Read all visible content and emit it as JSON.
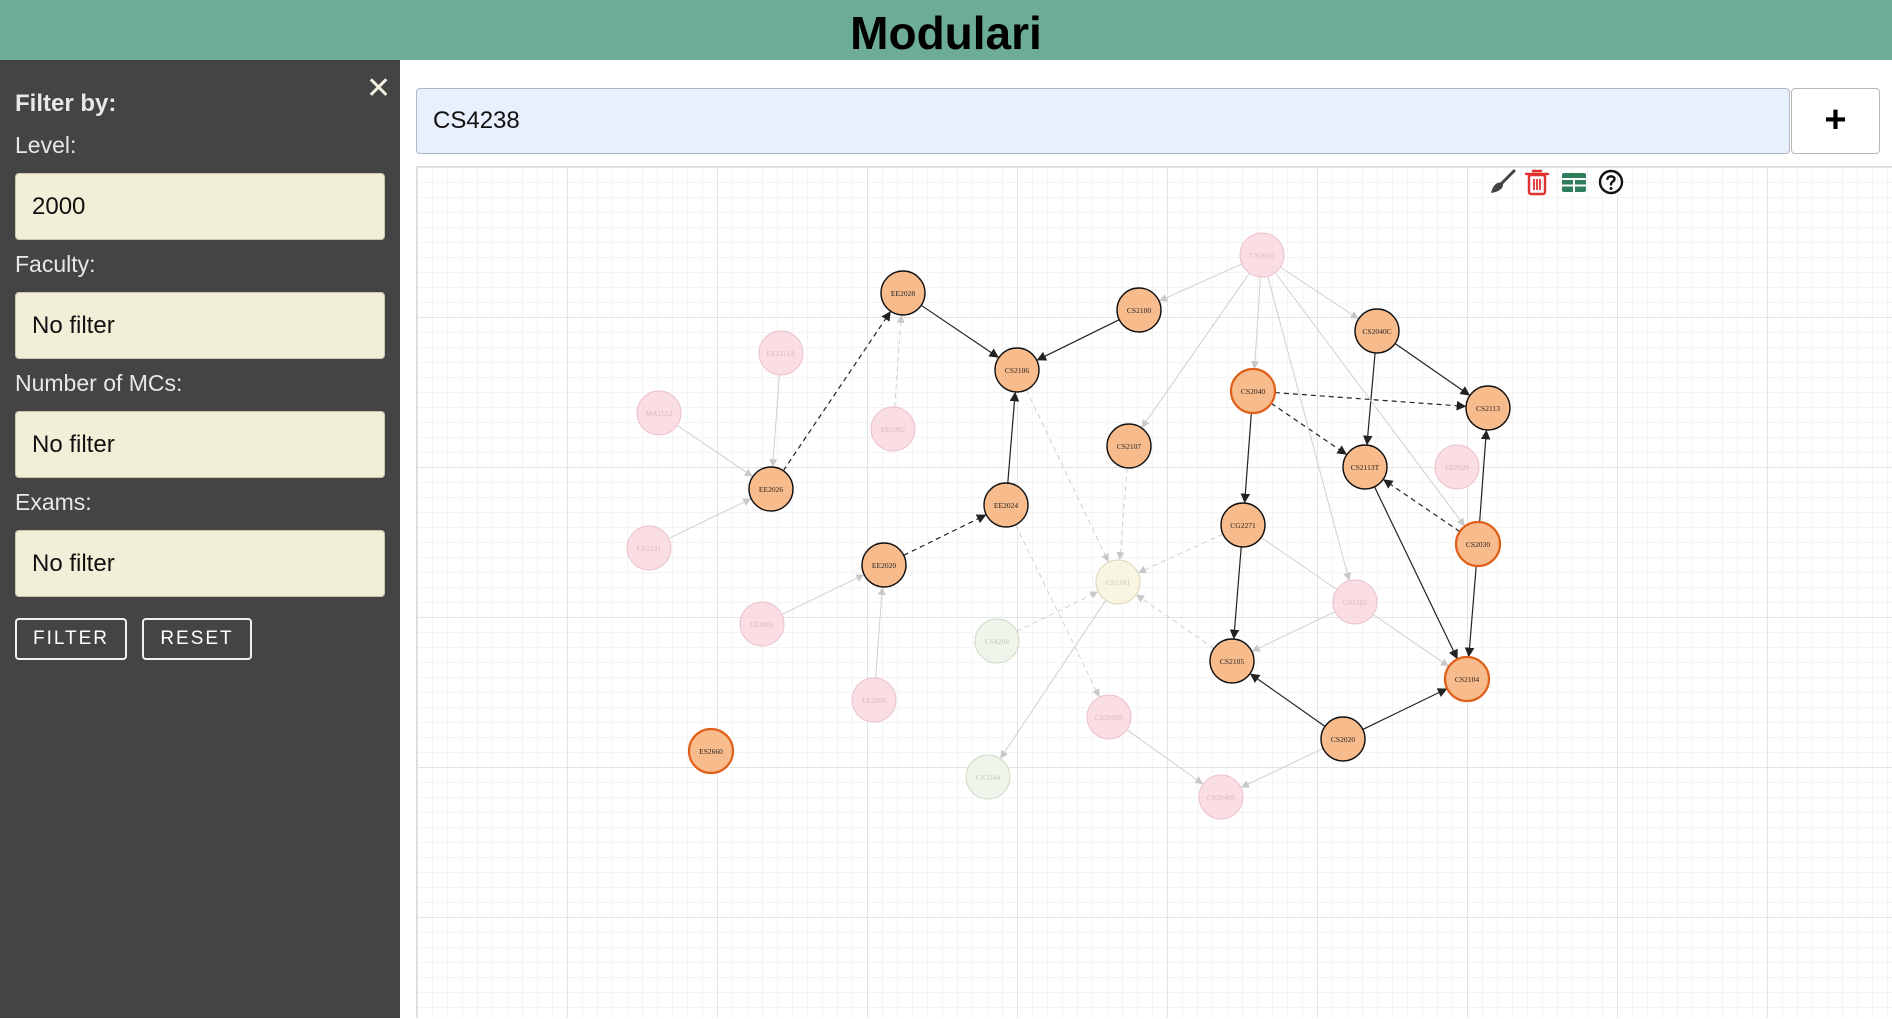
{
  "app": {
    "title": "Modulari"
  },
  "sidebar": {
    "close_glyph": "✕",
    "filter_title": "Filter by:",
    "fields": [
      {
        "label": "Level:",
        "value": "2000"
      },
      {
        "label": "Faculty:",
        "value": "No filter"
      },
      {
        "label": "Number of MCs:",
        "value": "No filter"
      },
      {
        "label": "Exams:",
        "value": "No filter"
      }
    ],
    "filter_button": "FILTER",
    "reset_button": "RESET"
  },
  "search": {
    "value": "CS4238",
    "add_glyph": "+"
  },
  "toolbar": {
    "icons": [
      "broom-icon",
      "trash-icon",
      "table-icon",
      "help-icon"
    ],
    "colors": {
      "broom": "#444444",
      "trash": "#e03030",
      "table": "#2e7d5b",
      "help": "#111111"
    }
  },
  "graph": {
    "colors": {
      "active": "#f8bb8c",
      "faded_pink": "#fbd8e0",
      "faded_cream": "#f8f6e0",
      "faded_green": "#eef4e8",
      "orange_border": "#e0601a"
    },
    "nodes": [
      {
        "id": "EE2028",
        "style": "active"
      },
      {
        "id": "CS2100",
        "style": "active"
      },
      {
        "id": "CS2106",
        "style": "active"
      },
      {
        "id": "CS2040C",
        "style": "active"
      },
      {
        "id": "CS2040",
        "style": "active-orange"
      },
      {
        "id": "CS2113",
        "style": "active"
      },
      {
        "id": "CS2107",
        "style": "active"
      },
      {
        "id": "CS2113T",
        "style": "active"
      },
      {
        "id": "EE2026",
        "style": "active"
      },
      {
        "id": "EE2024",
        "style": "active"
      },
      {
        "id": "CG2271",
        "style": "active"
      },
      {
        "id": "CS2030",
        "style": "active-orange"
      },
      {
        "id": "EE2020",
        "style": "active"
      },
      {
        "id": "CS2105",
        "style": "active"
      },
      {
        "id": "CS2104",
        "style": "active-orange"
      },
      {
        "id": "CS2020",
        "style": "active"
      },
      {
        "id": "ES2660",
        "style": "active-orange"
      },
      {
        "id": "CS1010",
        "style": "faded-pink"
      },
      {
        "id": "EE2111A",
        "style": "faded-pink"
      },
      {
        "id": "MA1512",
        "style": "faded-pink"
      },
      {
        "id": "EE1002",
        "style": "faded-pink"
      },
      {
        "id": "CS1231",
        "style": "faded-pink"
      },
      {
        "id": "EE1001",
        "style": "faded-pink"
      },
      {
        "id": "CS2101",
        "style": "faded-cream"
      },
      {
        "id": "CS2102",
        "style": "faded-pink"
      },
      {
        "id": "CS4204",
        "style": "faded-green"
      },
      {
        "id": "EE2006",
        "style": "faded-pink"
      },
      {
        "id": "CS3244",
        "style": "faded-green"
      },
      {
        "id": "CS2030S",
        "style": "faded-pink"
      },
      {
        "id": "CS2040S",
        "style": "faded-pink"
      },
      {
        "id": "EE2029",
        "style": "faded-pink"
      }
    ]
  }
}
